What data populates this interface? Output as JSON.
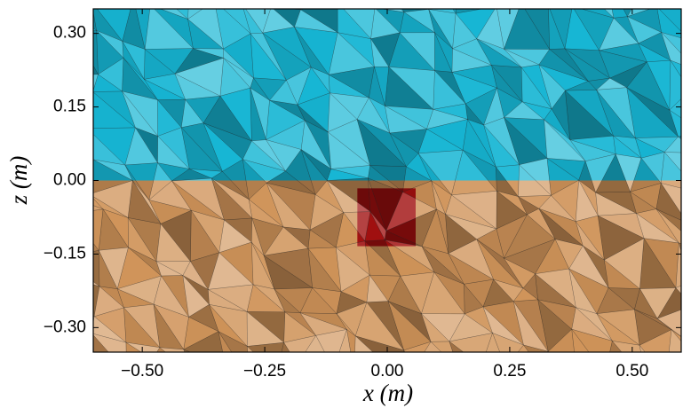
{
  "chart_data": {
    "type": "regions",
    "xlabel": "x (m)",
    "ylabel": "z (m)",
    "xlim": [
      -0.6,
      0.6
    ],
    "ylim": [
      -0.35,
      0.35
    ],
    "xticks": [
      {
        "value": -0.5,
        "label": "−0.50"
      },
      {
        "value": -0.25,
        "label": "−0.25"
      },
      {
        "value": 0,
        "label": "0.00"
      },
      {
        "value": 0.25,
        "label": "0.25"
      },
      {
        "value": 0.5,
        "label": "0.50"
      }
    ],
    "yticks": [
      {
        "value": 0.3,
        "label": "0.30"
      },
      {
        "value": 0.15,
        "label": "0.15"
      },
      {
        "value": 0,
        "label": "0.00"
      },
      {
        "value": -0.15,
        "label": "−0.15"
      },
      {
        "value": -0.3,
        "label": "−0.30"
      }
    ],
    "regions": [
      {
        "xlim": [
          -0.6,
          0.6
        ],
        "ylim": [
          0,
          0.35
        ],
        "color": "#17b6d4"
      },
      {
        "xlim": [
          -0.6,
          0.6
        ],
        "ylim": [
          -0.35,
          0
        ],
        "color": "#d0945a"
      },
      {
        "xlim": [
          -0.061,
          0.058
        ],
        "ylim": [
          -0.134,
          -0.016
        ],
        "color": "#a01010"
      }
    ]
  }
}
